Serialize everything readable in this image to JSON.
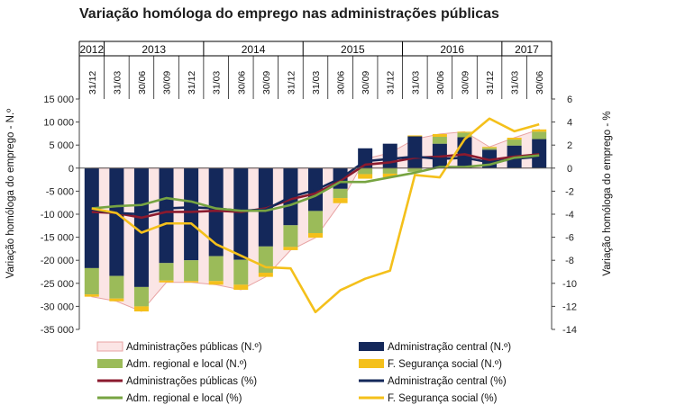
{
  "chart_data": {
    "type": "bar",
    "title": "Variação homóloga do emprego nas administrações públicas",
    "ylabel_left": "Variação homóloga do emprego - N.º",
    "ylabel_right": "Variação homóloga do emprego - %",
    "ylim_left": [
      -35000,
      15000
    ],
    "yticks_left": [
      -35000,
      -30000,
      -25000,
      -20000,
      -15000,
      -10000,
      -5000,
      0,
      5000,
      10000,
      15000
    ],
    "ytick_labels_left": [
      "-35 000",
      "-30 000",
      "-25 000",
      "-20 000",
      "-15 000",
      "-10 000",
      "-5 000",
      "0",
      "5 000",
      "10 000",
      "15 000"
    ],
    "ylim_right": [
      -14,
      6
    ],
    "yticks_right": [
      -14,
      -12,
      -10,
      -8,
      -6,
      -4,
      -2,
      0,
      2,
      4,
      6
    ],
    "ytick_labels_right": [
      "-14",
      "-12",
      "-10",
      "-8",
      "-6",
      "-4",
      "-2",
      "0",
      "2",
      "4",
      "6"
    ],
    "categories": [
      "31/12",
      "31/03",
      "30/06",
      "30/09",
      "31/12",
      "31/03",
      "30/06",
      "30/09",
      "31/12",
      "31/03",
      "30/06",
      "30/09",
      "31/12",
      "31/03",
      "30/06",
      "30/09",
      "31/12",
      "31/03",
      "30/06"
    ],
    "years": [
      {
        "label": "2012",
        "from": 0,
        "to": 0
      },
      {
        "label": "2013",
        "from": 1,
        "to": 4
      },
      {
        "label": "2014",
        "from": 5,
        "to": 8
      },
      {
        "label": "2015",
        "from": 9,
        "to": 12
      },
      {
        "label": "2016",
        "from": 13,
        "to": 16
      },
      {
        "label": "2017",
        "from": 17,
        "to": 18
      }
    ],
    "stacked_series": [
      {
        "name": "Administração central (N.º)",
        "color": "#14285a",
        "values": [
          -21700,
          -23400,
          -25800,
          -20600,
          -20000,
          -19100,
          -19900,
          -17000,
          -12400,
          -9300,
          -4500,
          4300,
          5300,
          6900,
          5300,
          6700,
          4000,
          4900,
          6300
        ]
      },
      {
        "name": "Adm. regional e local (N.º)",
        "color": "#9bbb59",
        "values": [
          -5700,
          -4900,
          -4200,
          -3800,
          -4500,
          -5400,
          -5400,
          -5700,
          -4700,
          -4800,
          -2000,
          -1300,
          -1200,
          -800,
          1500,
          1000,
          400,
          1300,
          1600
        ]
      },
      {
        "name": "F. Segurança social  (N.º)",
        "color": "#f4c01b",
        "values": [
          -500,
          -600,
          -1100,
          -400,
          -300,
          -800,
          -1100,
          -900,
          -700,
          -1000,
          -1100,
          -1000,
          -800,
          200,
          600,
          200,
          200,
          400,
          500
        ]
      }
    ],
    "area_series": {
      "name": "Administrações públicas (N.º)",
      "fill": "#fbe5e5",
      "stroke": "#e8a3a3",
      "values": [
        -27900,
        -28900,
        -31100,
        -24800,
        -24800,
        -25300,
        -26400,
        -23600,
        -17800,
        -15100,
        -7600,
        2000,
        3300,
        6300,
        7400,
        7900,
        4600,
        6600,
        8400
      ]
    },
    "line_series": [
      {
        "name": "Administrações públicas (%)",
        "color": "#8b1a2e",
        "values": [
          -3.8,
          -3.9,
          -4.3,
          -3.8,
          -3.8,
          -3.7,
          -3.8,
          -3.5,
          -2.7,
          -2.2,
          -1.1,
          0.3,
          0.5,
          0.9,
          1.0,
          1.2,
          0.7,
          1.0,
          1.2
        ]
      },
      {
        "name": "Administração central  (%)",
        "color": "#14285a",
        "values": [
          -3.6,
          -3.9,
          -4.0,
          -3.5,
          -3.4,
          -3.5,
          -3.7,
          -3.6,
          -2.5,
          -1.9,
          -0.9,
          0.6,
          0.8,
          1.0,
          0.8,
          0.9,
          0.5,
          0.8,
          1.0
        ]
      },
      {
        "name": "Adm. regional e local (%)",
        "color": "#77a442",
        "values": [
          -3.5,
          -3.3,
          -3.2,
          -2.6,
          -2.9,
          -3.5,
          -3.7,
          -3.7,
          -3.2,
          -2.4,
          -1.2,
          -1.2,
          -0.8,
          -0.4,
          0.1,
          0.1,
          0.3,
          0.9,
          1.1
        ]
      },
      {
        "name": "F. Segurança social (%)",
        "color": "#f4c01b",
        "values": [
          -3.5,
          -3.9,
          -5.6,
          -4.8,
          -4.8,
          -6.6,
          -7.6,
          -8.6,
          -8.7,
          -12.5,
          -10.6,
          -9.6,
          -8.9,
          -0.6,
          -0.8,
          2.5,
          4.3,
          3.2,
          3.8
        ]
      }
    ],
    "legend": [
      {
        "label": "Administrações públicas (N.º)",
        "kind": "area",
        "color": "#fbe5e5",
        "stroke": "#e8a3a3"
      },
      {
        "label": "Administração central (N.º)",
        "kind": "bar",
        "color": "#14285a"
      },
      {
        "label": "Adm. regional e local (N.º)",
        "kind": "bar",
        "color": "#9bbb59"
      },
      {
        "label": "F. Segurança social  (N.º)",
        "kind": "bar",
        "color": "#f4c01b"
      },
      {
        "label": "Administrações públicas (%)",
        "kind": "line",
        "color": "#8b1a2e"
      },
      {
        "label": "Administração central  (%)",
        "kind": "line",
        "color": "#14285a"
      },
      {
        "label": "Adm. regional e local (%)",
        "kind": "line",
        "color": "#77a442"
      },
      {
        "label": "F. Segurança social (%)",
        "kind": "line",
        "color": "#f4c01b"
      }
    ]
  }
}
